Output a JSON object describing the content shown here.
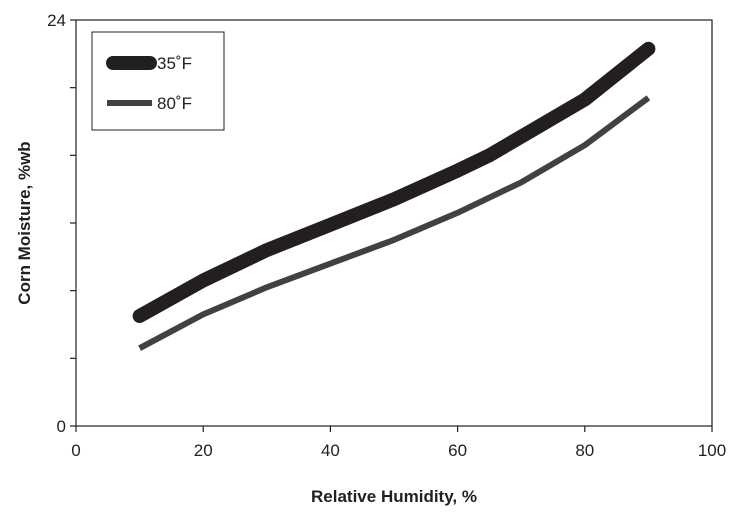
{
  "chart_data": {
    "type": "line",
    "xlabel": "Relative Humidity, %",
    "ylabel": "Corn Moisture, %wb",
    "xlim": [
      0,
      100
    ],
    "ylim": [
      0,
      24
    ],
    "xticks": [
      0,
      20,
      40,
      60,
      80,
      100
    ],
    "yticks_labeled": [
      0,
      24
    ],
    "yticks_minor": [
      4,
      8,
      12,
      16,
      20
    ],
    "grid": false,
    "legend_position": "top-left",
    "series": [
      {
        "name": "35˚F",
        "color": "#231f20",
        "style": "thick",
        "x": [
          10,
          20,
          30,
          40,
          50,
          60,
          65,
          70,
          80,
          90
        ],
        "y": [
          6.5,
          8.6,
          10.4,
          11.9,
          13.4,
          15.1,
          16.0,
          17.1,
          19.3,
          22.3
        ]
      },
      {
        "name": "80˚F",
        "color": "#414042",
        "style": "thin",
        "x": [
          10,
          20,
          30,
          40,
          50,
          60,
          70,
          80,
          90
        ],
        "y": [
          4.6,
          6.6,
          8.2,
          9.6,
          11.0,
          12.6,
          14.4,
          16.6,
          19.4
        ]
      }
    ]
  }
}
